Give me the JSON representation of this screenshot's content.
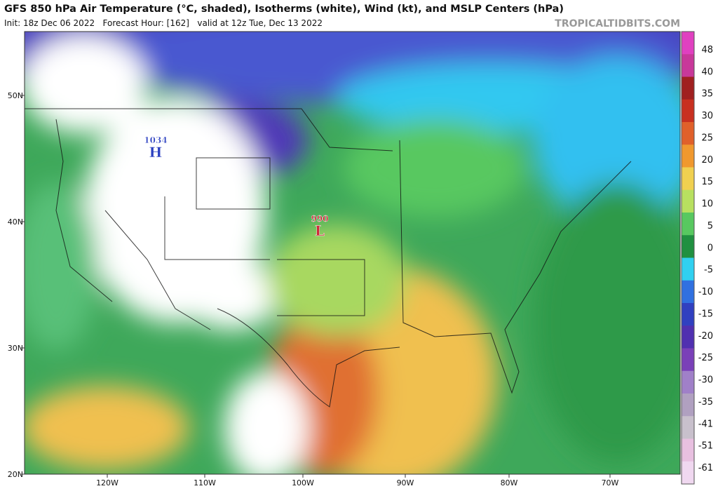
{
  "header": {
    "title": "GFS 850 hPa Air Temperature (°C, shaded), Isotherms (white), Wind (kt), and MSLP Centers (hPa)",
    "subtitle": "Init: 18z Dec 06 2022   Forecast Hour: [162]   valid at 12z Tue, Dec 13 2022",
    "credit": "TROPICALTIDBITS.COM"
  },
  "map": {
    "lat_labels": [
      "50N",
      "40N",
      "30N",
      "20N"
    ],
    "lon_labels": [
      "120W",
      "110W",
      "100W",
      "90W",
      "80W",
      "70W"
    ],
    "centers": [
      {
        "value": "1034",
        "label": "H",
        "color": "#2a3fc0"
      },
      {
        "value": "990",
        "label": "L",
        "color": "#d0283a"
      }
    ]
  },
  "colorbar": {
    "labels": [
      48,
      40,
      35,
      30,
      25,
      20,
      15,
      10,
      5,
      0,
      -5,
      -10,
      -15,
      -20,
      -25,
      -30,
      -35,
      -41,
      -51,
      -61
    ],
    "colors": [
      "#e040c0",
      "#c8389a",
      "#a02020",
      "#c83020",
      "#e0602a",
      "#f0982e",
      "#f0d050",
      "#b8e060",
      "#58c860",
      "#209040",
      "#30d0f0",
      "#3070e0",
      "#3040c0",
      "#5030b0",
      "#7a40b8",
      "#a080c8",
      "#b0a0c0",
      "#c8c0cc",
      "#e8c0e0",
      "#f0d8f0"
    ]
  }
}
